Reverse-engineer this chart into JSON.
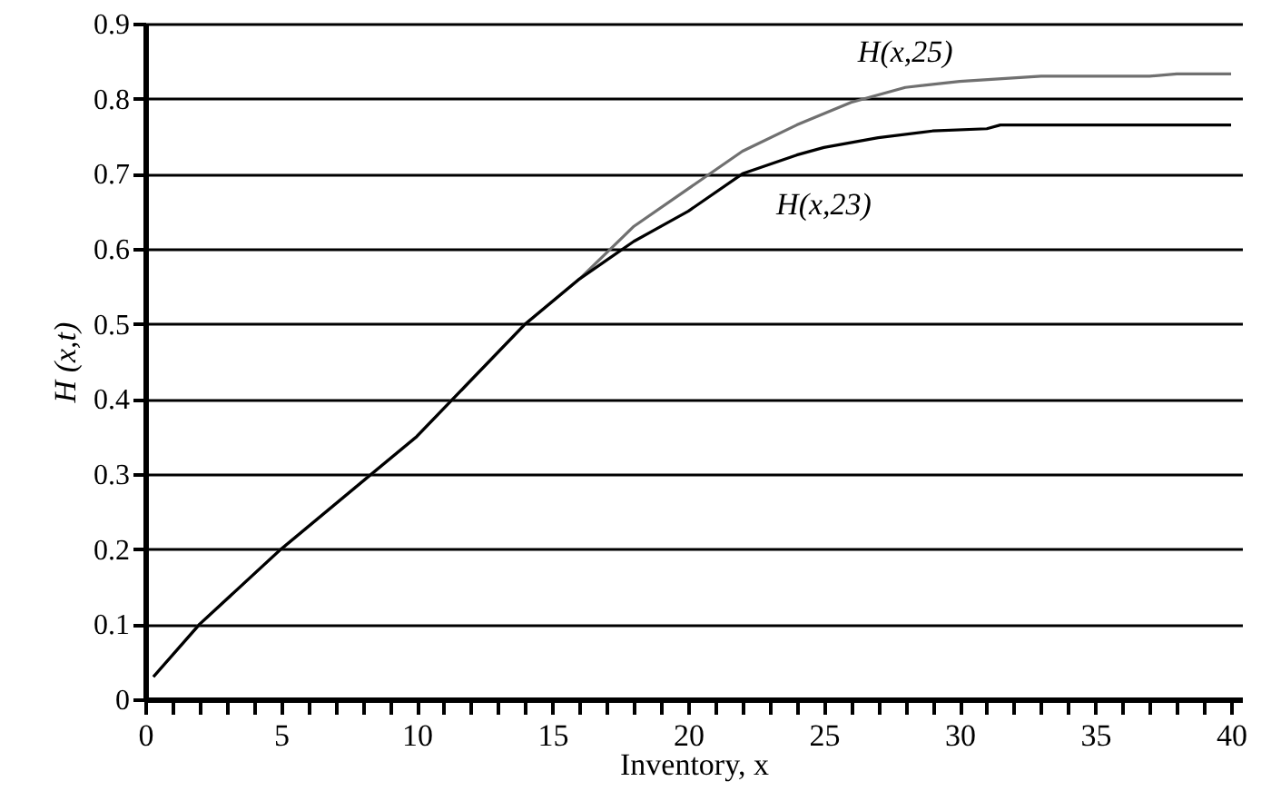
{
  "chart_data": {
    "type": "line",
    "xlabel": "Inventory, x",
    "ylabel": "H (x,t)",
    "xlim": [
      0,
      40.4
    ],
    "ylim": [
      0,
      0.9
    ],
    "xticks": [
      0,
      {
        "value": 1,
        "label": null
      },
      {
        "value": 2,
        "label": null
      },
      {
        "value": 3,
        "label": null
      },
      {
        "value": 4,
        "label": null
      },
      5,
      {
        "value": 6,
        "label": null
      },
      {
        "value": 7,
        "label": null
      },
      {
        "value": 8,
        "label": null
      },
      {
        "value": 9,
        "label": null
      },
      10,
      {
        "value": 11,
        "label": null
      },
      {
        "value": 12,
        "label": null
      },
      {
        "value": 13,
        "label": null
      },
      {
        "value": 14,
        "label": null
      },
      15,
      {
        "value": 16,
        "label": null
      },
      {
        "value": 17,
        "label": null
      },
      {
        "value": 18,
        "label": null
      },
      {
        "value": 19,
        "label": null
      },
      20,
      {
        "value": 21,
        "label": null
      },
      {
        "value": 22,
        "label": null
      },
      {
        "value": 23,
        "label": null
      },
      {
        "value": 24,
        "label": null
      },
      25,
      {
        "value": 26,
        "label": null
      },
      {
        "value": 27,
        "label": null
      },
      {
        "value": 28,
        "label": null
      },
      {
        "value": 29,
        "label": null
      },
      30,
      {
        "value": 31,
        "label": null
      },
      {
        "value": 32,
        "label": null
      },
      {
        "value": 33,
        "label": null
      },
      {
        "value": 34,
        "label": null
      },
      35,
      {
        "value": 36,
        "label": null
      },
      {
        "value": 37,
        "label": null
      },
      {
        "value": 38,
        "label": null
      },
      {
        "value": 39,
        "label": null
      },
      40
    ],
    "yticks": [
      0,
      0.1,
      0.2,
      0.3,
      0.4,
      0.5,
      0.6,
      0.7,
      0.8,
      0.9
    ],
    "grid": "y",
    "line_style": "solid",
    "series": [
      {
        "name": "H(x,25)",
        "color": "#707070",
        "x": [
          0.3,
          2,
          5,
          8,
          10,
          14,
          16,
          18,
          20,
          22,
          24,
          26,
          28,
          30,
          33,
          37,
          38,
          40
        ],
        "values": [
          0.03,
          0.1,
          0.2,
          0.29,
          0.35,
          0.5,
          0.56,
          0.63,
          0.68,
          0.73,
          0.765,
          0.795,
          0.815,
          0.823,
          0.83,
          0.83,
          0.833,
          0.833
        ]
      },
      {
        "name": "H(x,23)",
        "color": "#000000",
        "x": [
          0.3,
          2,
          5,
          8,
          10,
          14,
          16,
          17,
          18,
          20,
          22,
          24,
          25,
          27,
          29,
          31,
          31.5,
          40
        ],
        "values": [
          0.03,
          0.1,
          0.2,
          0.29,
          0.35,
          0.5,
          0.56,
          0.585,
          0.61,
          0.65,
          0.7,
          0.725,
          0.735,
          0.748,
          0.757,
          0.76,
          0.765,
          0.765
        ]
      }
    ]
  }
}
